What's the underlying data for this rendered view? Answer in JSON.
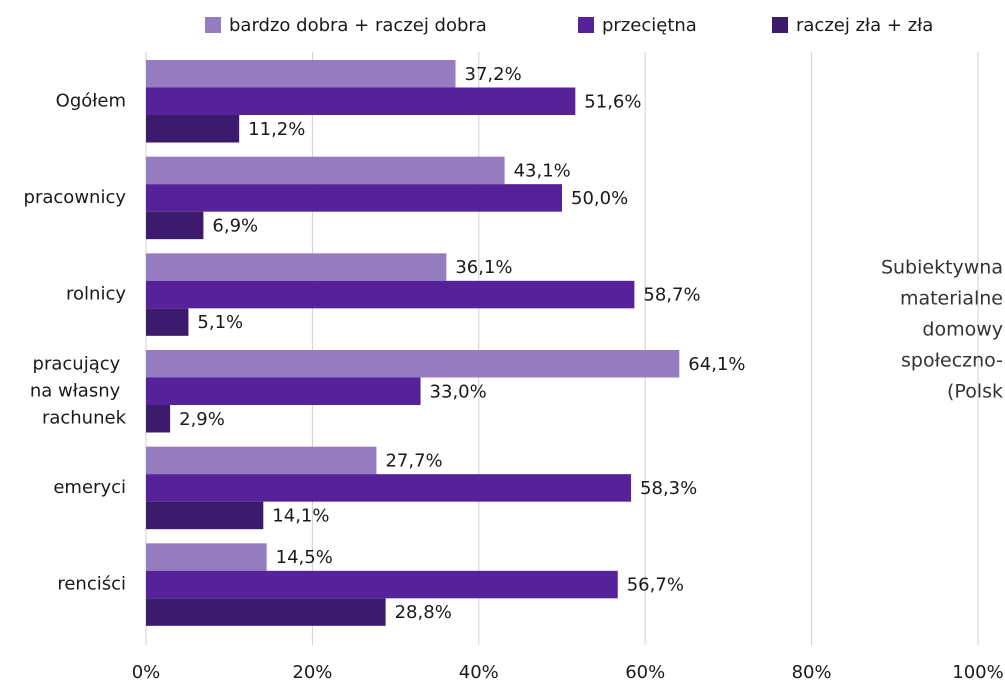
{
  "chart_data": {
    "type": "bar",
    "orientation": "horizontal",
    "categories": [
      "Ogółem",
      "pracownicy",
      "rolnicy",
      "pracujący na własny rachunek",
      "emeryci",
      "renciści"
    ],
    "series": [
      {
        "name": "bardzo dobra + raczej dobra",
        "color": "#957bc0",
        "values": [
          37.2,
          43.1,
          36.1,
          64.1,
          27.7,
          14.5
        ],
        "value_labels": [
          "37,2%",
          "43,1%",
          "36,1%",
          "64,1%",
          "27,7%",
          "14,5%"
        ]
      },
      {
        "name": "przeciętna",
        "color": "#55229a",
        "values": [
          51.6,
          50.0,
          58.7,
          33.0,
          58.3,
          56.7
        ],
        "value_labels": [
          "51,6%",
          "50,0%",
          "58,7%",
          "33,0%",
          "58,3%",
          "56,7%"
        ]
      },
      {
        "name": "raczej zła + zła",
        "color": "#3c1b6c",
        "values": [
          11.2,
          6.9,
          5.1,
          2.9,
          14.1,
          28.8
        ],
        "value_labels": [
          "11,2%",
          "6,9%",
          "5,1%",
          "2,9%",
          "14,1%",
          "28,8%"
        ]
      }
    ],
    "xlim": [
      0,
      100
    ],
    "xticks": [
      {
        "value": 0,
        "label": "0%"
      },
      {
        "value": 20,
        "label": "20%"
      },
      {
        "value": 40,
        "label": "40%"
      },
      {
        "value": 60,
        "label": "60%"
      },
      {
        "value": 80,
        "label": "80%"
      },
      {
        "value": 100,
        "label": "100%"
      }
    ],
    "grid": true,
    "side_text": [
      "Subiektywna",
      "materialne",
      "domowy",
      "społeczno-",
      "(Polsk"
    ]
  }
}
